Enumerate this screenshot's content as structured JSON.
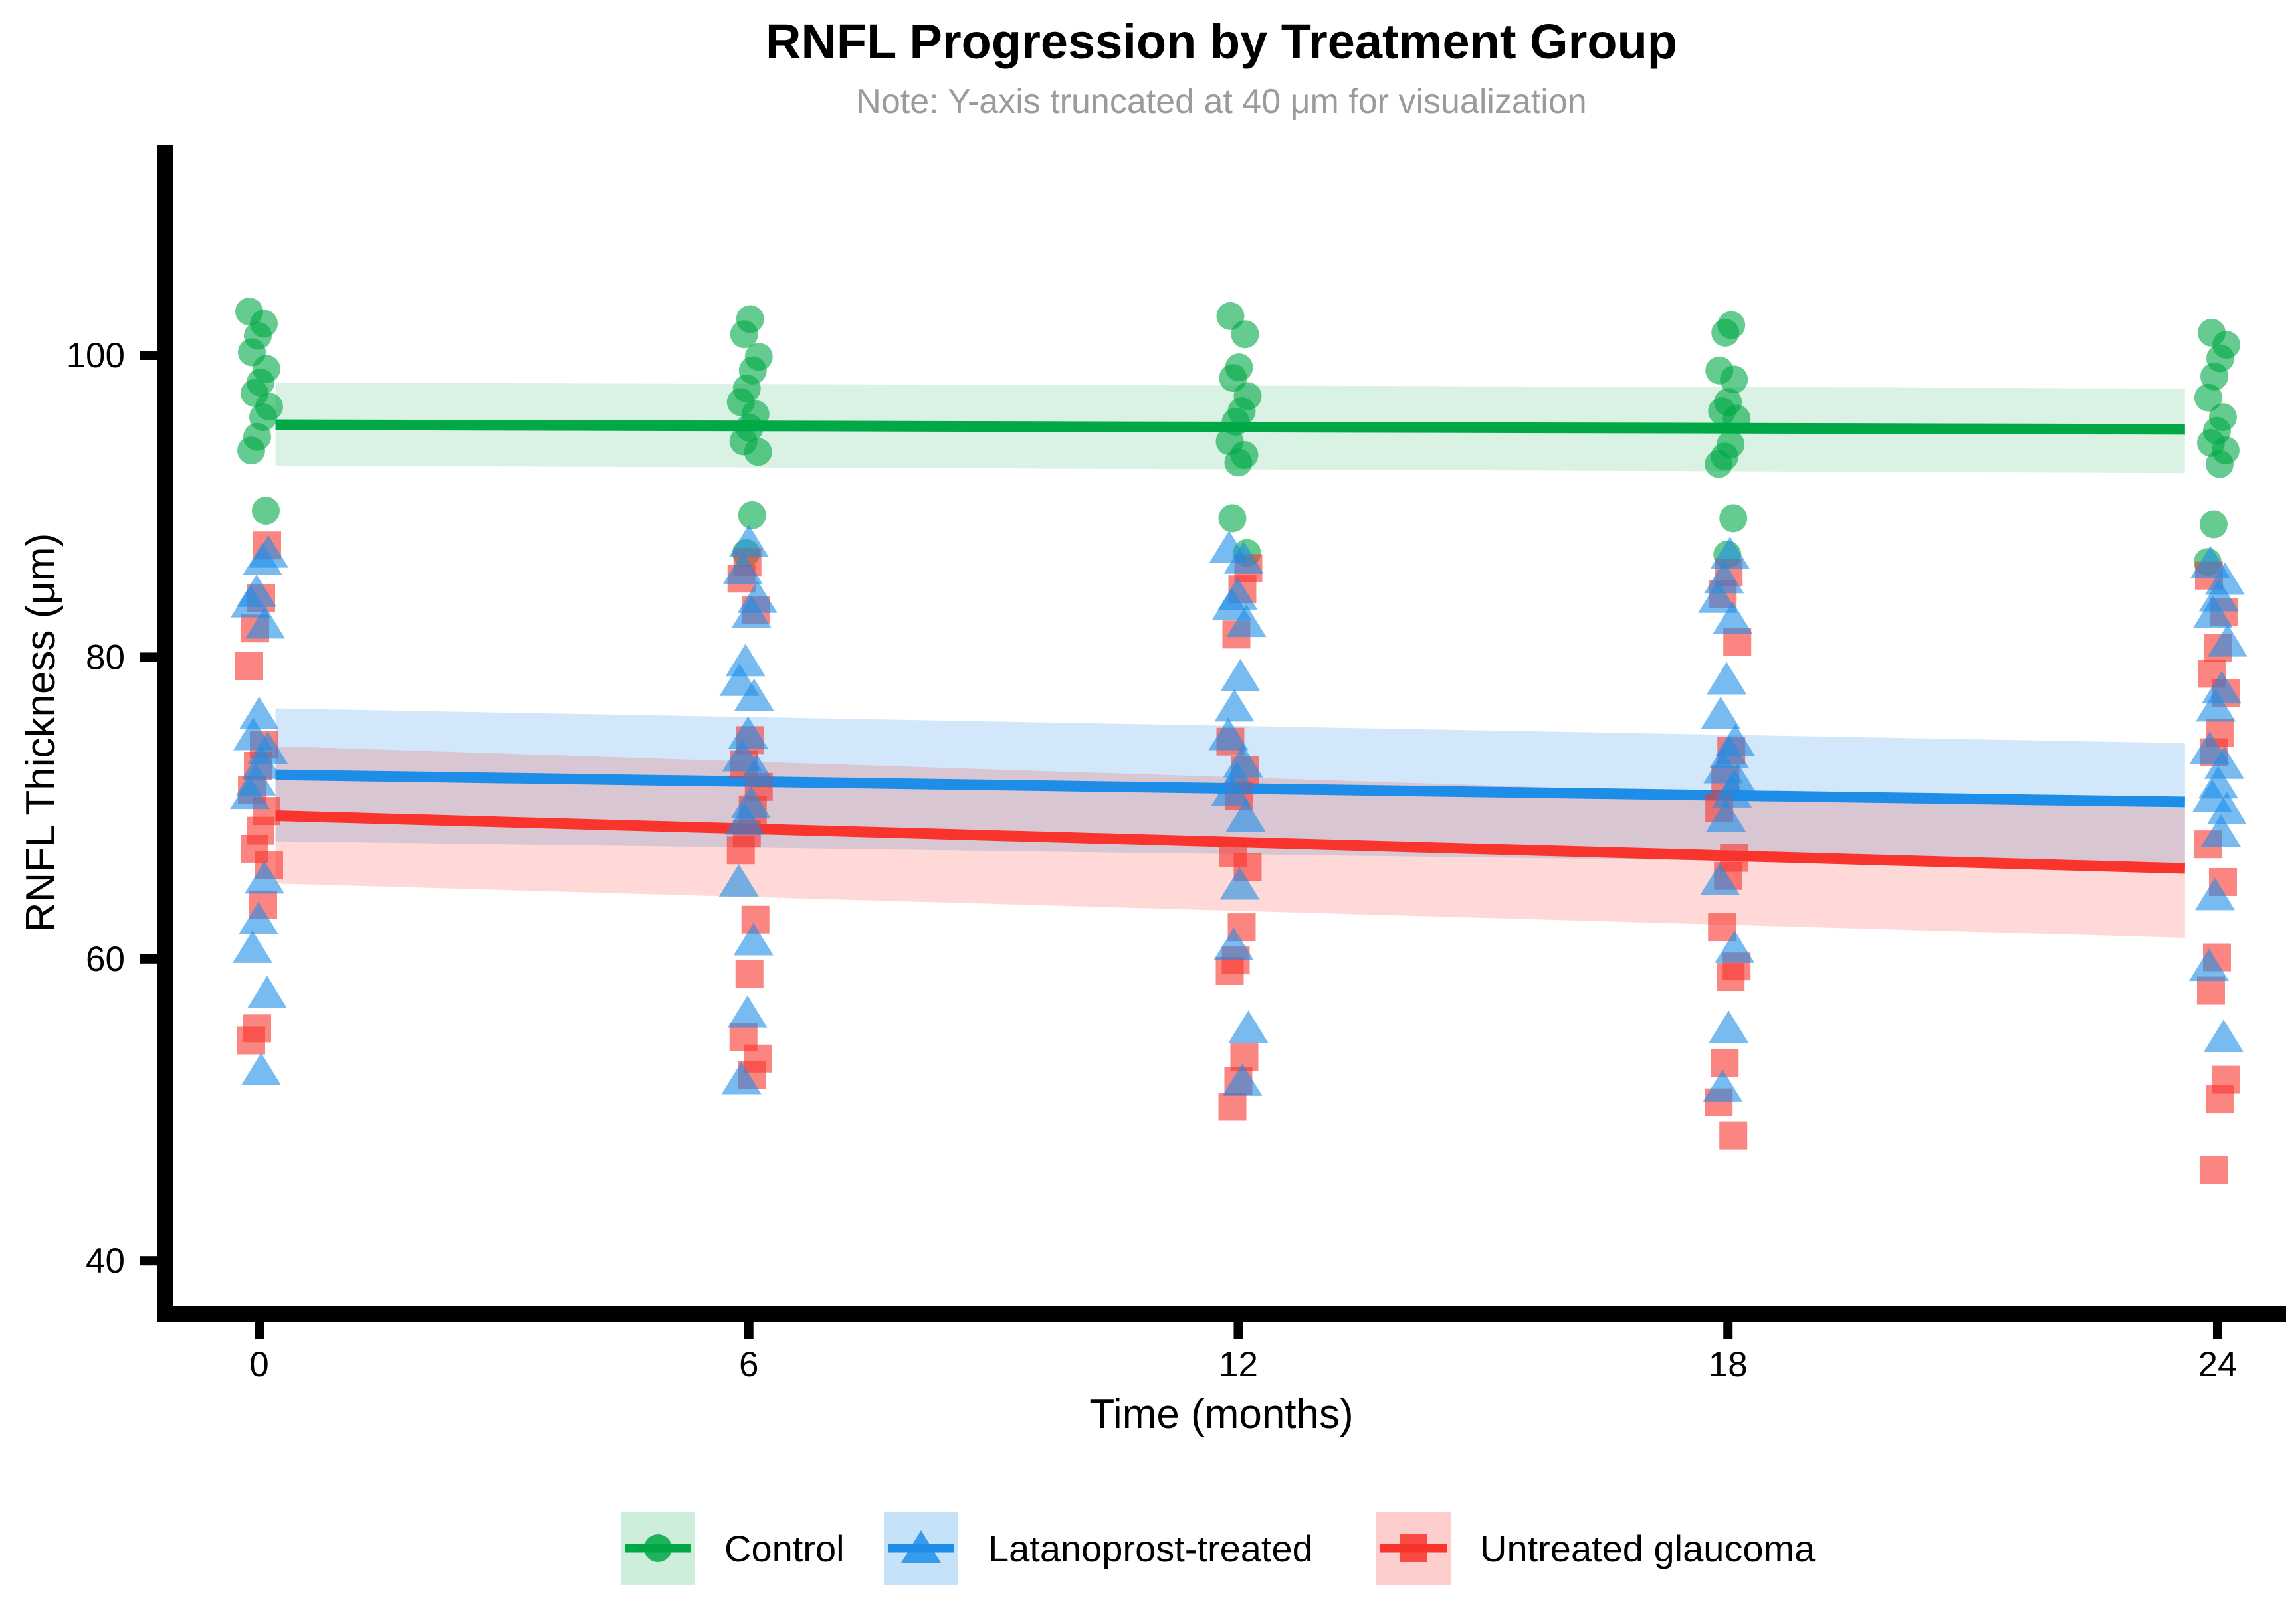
{
  "page": {
    "background": "#ffffff"
  },
  "chart_data": {
    "type": "scatter",
    "title": "RNFL Progression by Treatment Group",
    "subtitle": "Note: Y-axis truncated at 40 μm for visualization",
    "xlabel": "Time (months)",
    "ylabel": "RNFL Thickness (μm)",
    "x_ticks": [
      0,
      6,
      12,
      18,
      24
    ],
    "y_ticks": [
      40,
      60,
      80,
      100
    ],
    "xlim": [
      -1.25,
      25
    ],
    "ylim": [
      36,
      114
    ],
    "grid": false,
    "legend_position": "bottom",
    "axis_color": "#000000",
    "subtitle_color": "#9b9b9b",
    "series": [
      {
        "name": "Control",
        "marker": "circle",
        "color": "#00a846",
        "ribbon_alpha": 0.15,
        "point_alpha": 0.6,
        "trend": {
          "x": [
            0.2,
            23.6
          ],
          "y": [
            95.4,
            95.1
          ]
        },
        "ribbon": {
          "x": [
            0.2,
            23.6
          ],
          "top": [
            98.2,
            97.8
          ],
          "bottom": [
            92.7,
            92.2
          ]
        },
        "points": [
          {
            "t": 0,
            "values": [
              102.9,
              102.1,
              101.3,
              100.2,
              99.1,
              98.2,
              97.5,
              96.6,
              95.9,
              94.6,
              93.7,
              89.7
            ]
          },
          {
            "t": 6,
            "values": [
              102.4,
              101.4,
              99.9,
              99.0,
              97.8,
              96.9,
              96.1,
              95.2,
              94.3,
              93.6,
              89.4,
              86.9
            ]
          },
          {
            "t": 12,
            "values": [
              102.6,
              101.4,
              99.2,
              98.5,
              97.3,
              96.3,
              95.6,
              94.3,
              93.4,
              92.9,
              89.2,
              86.9
            ]
          },
          {
            "t": 18,
            "values": [
              102.0,
              101.5,
              99.0,
              98.4,
              96.9,
              96.3,
              95.8,
              94.1,
              93.3,
              92.8,
              89.2,
              86.8
            ]
          },
          {
            "t": 24,
            "values": [
              101.5,
              100.7,
              99.8,
              98.6,
              97.2,
              95.9,
              95.0,
              94.2,
              93.7,
              92.8,
              88.8,
              86.3
            ]
          }
        ]
      },
      {
        "name": "Latanoprost-treated",
        "marker": "triangle",
        "color": "#1d8de8",
        "ribbon_alpha": 0.2,
        "point_alpha": 0.6,
        "trend": {
          "x": [
            0.2,
            23.6
          ],
          "y": [
            72.2,
            70.4
          ]
        },
        "ribbon": {
          "x": [
            0.2,
            23.6
          ],
          "top": [
            76.6,
            74.3
          ],
          "bottom": [
            67.8,
            66.1
          ]
        },
        "points": [
          {
            "t": 0,
            "values": [
              86.9,
              86.4,
              84.3,
              83.6,
              82.2,
              76.2,
              74.8,
              73.9,
              72.9,
              71.8,
              70.9,
              65.3,
              62.6,
              60.7,
              57.7,
              52.6
            ]
          },
          {
            "t": 6,
            "values": [
              87.6,
              85.8,
              83.9,
              82.9,
              79.7,
              78.4,
              77.4,
              74.9,
              73.4,
              72.4,
              70.3,
              69.2,
              65.1,
              61.2,
              56.4,
              52.0
            ]
          },
          {
            "t": 12,
            "values": [
              87.2,
              86.5,
              84.1,
              83.4,
              82.3,
              78.7,
              76.7,
              74.8,
              73.0,
              71.9,
              71.1,
              69.4,
              64.9,
              60.9,
              55.4,
              51.9
            ]
          },
          {
            "t": 18,
            "values": [
              86.8,
              85.2,
              83.9,
              82.5,
              78.5,
              76.2,
              74.4,
              73.6,
              72.6,
              71.8,
              71.0,
              69.4,
              65.2,
              60.7,
              55.4,
              51.5
            ]
          },
          {
            "t": 24,
            "values": [
              86.2,
              85.1,
              84.0,
              82.9,
              81.0,
              77.9,
              76.7,
              73.9,
              72.9,
              71.6,
              70.7,
              69.9,
              68.4,
              64.2,
              59.5,
              54.8
            ]
          }
        ]
      },
      {
        "name": "Untreated glaucoma",
        "marker": "square",
        "color": "#f8342c",
        "ribbon_alpha": 0.19,
        "point_alpha": 0.6,
        "trend": {
          "x": [
            0.2,
            23.6
          ],
          "y": [
            69.5,
            66.0
          ]
        },
        "ribbon": {
          "x": [
            0.2,
            23.6
          ],
          "top": [
            74.1,
            70.0
          ],
          "bottom": [
            65.0,
            61.4
          ]
        },
        "points": [
          {
            "t": 0,
            "values": [
              87.4,
              83.9,
              81.9,
              79.4,
              74.2,
              72.8,
              71.2,
              69.8,
              68.5,
              67.3,
              66.2,
              63.6,
              55.4,
              54.6
            ]
          },
          {
            "t": 6,
            "values": [
              86.3,
              85.2,
              83.1,
              74.5,
              72.9,
              71.4,
              69.9,
              68.3,
              67.2,
              62.6,
              59.0,
              54.8,
              53.4,
              52.3
            ]
          },
          {
            "t": 12,
            "values": [
              85.9,
              84.5,
              81.5,
              74.4,
              72.5,
              70.8,
              67.0,
              66.1,
              62.1,
              59.9,
              59.2,
              53.5,
              51.9,
              50.2
            ]
          },
          {
            "t": 18,
            "values": [
              85.6,
              84.2,
              81.0,
              73.8,
              71.9,
              70.0,
              66.7,
              65.5,
              62.1,
              59.5,
              58.8,
              53.1,
              50.5,
              48.3
            ]
          },
          {
            "t": 24,
            "values": [
              85.4,
              83.0,
              80.6,
              78.9,
              77.6,
              75.0,
              73.7,
              67.6,
              65.1,
              60.1,
              57.9,
              52.0,
              50.7,
              46.0
            ]
          }
        ]
      }
    ]
  }
}
